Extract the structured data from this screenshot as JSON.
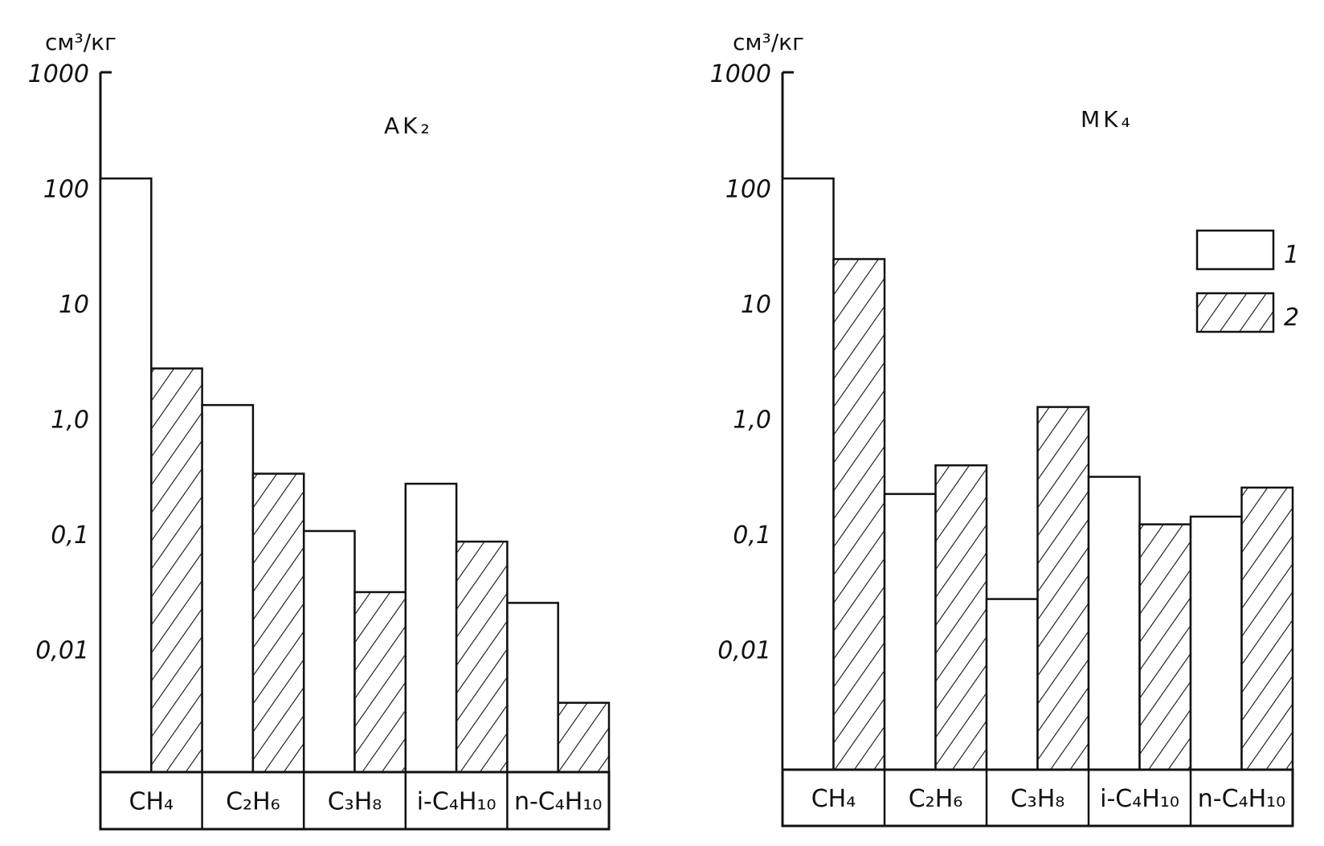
{
  "chart_data": [
    {
      "type": "bar",
      "title": "AK₂",
      "ylabel": "см³/кг",
      "yscale": "log",
      "ylim": [
        0.001,
        1000
      ],
      "yticks": [
        "1000",
        "100",
        "10",
        "1,0",
        "0,1",
        "0,01"
      ],
      "categories": [
        "CH₄",
        "C₂H₆",
        "C₃H₈",
        "i-C₄H₁₀",
        "n-C₄H₁₀"
      ],
      "series": [
        {
          "name": "1",
          "values": [
            120,
            1.3,
            0.105,
            0.27,
            0.025
          ]
        },
        {
          "name": "2",
          "values": [
            2.7,
            0.33,
            0.031,
            0.085,
            0.0034
          ]
        }
      ]
    },
    {
      "type": "bar",
      "title": "MK₄",
      "ylabel": "см³/кг",
      "yscale": "log",
      "ylim": [
        0.001,
        1000
      ],
      "yticks": [
        "1000",
        "100",
        "10",
        "1,0",
        "0,1",
        "0,01"
      ],
      "categories": [
        "CH₄",
        "C₂H₆",
        "C₃H₈",
        "i-C₄H₁₀",
        "n-C₄H₁₀"
      ],
      "series": [
        {
          "name": "1",
          "values": [
            120,
            0.22,
            0.027,
            0.31,
            0.14
          ]
        },
        {
          "name": "2",
          "values": [
            24,
            0.39,
            1.25,
            0.12,
            0.25
          ]
        }
      ]
    }
  ],
  "legend": {
    "entries": [
      {
        "label": "1",
        "fill": "plain"
      },
      {
        "label": "2",
        "fill": "hatched"
      }
    ]
  }
}
